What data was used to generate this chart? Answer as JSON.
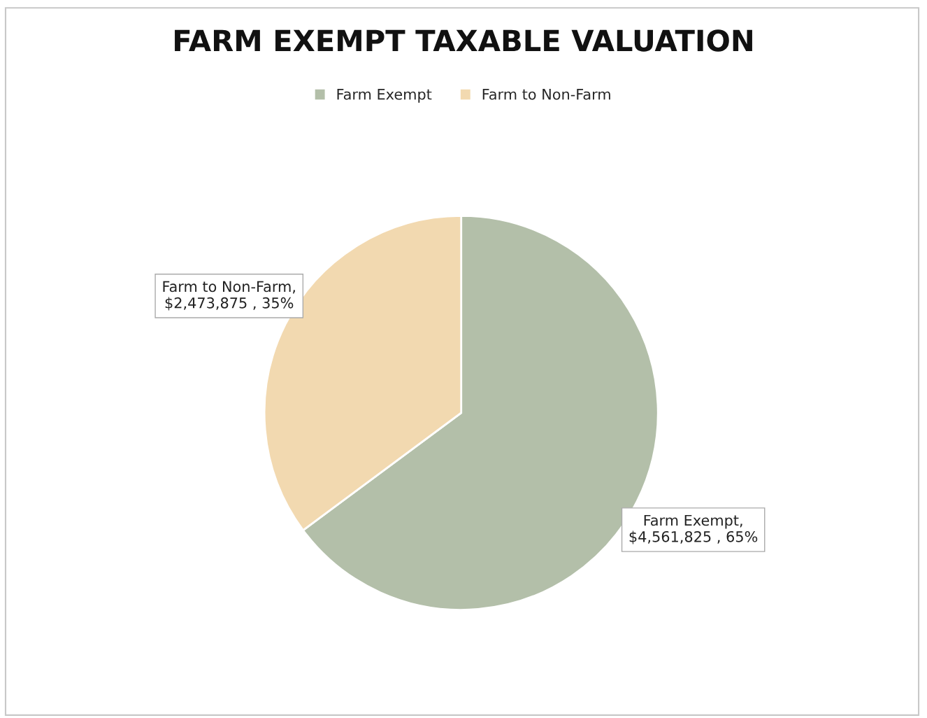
{
  "chart_data": {
    "type": "pie",
    "title": "FARM EXEMPT TAXABLE VALUATION",
    "categories": [
      "Farm Exempt",
      "Farm to Non-Farm"
    ],
    "values": [
      4561825,
      2473875
    ],
    "colors": [
      "#b3bfa9",
      "#f2d9b0"
    ],
    "value_labels": [
      "Farm Exempt,\n$4,561,825 , 65%",
      "Farm to Non-Farm,\n$2,473,875 , 35%"
    ],
    "legend": "top"
  }
}
